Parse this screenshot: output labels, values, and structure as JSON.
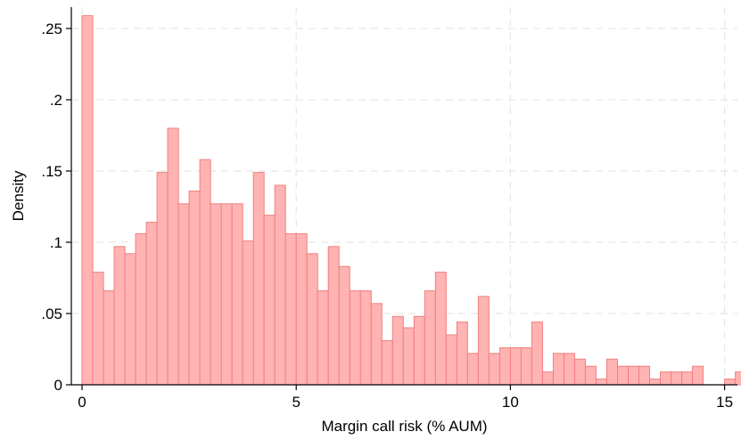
{
  "chart_data": {
    "type": "bar",
    "subtype": "histogram",
    "title": "",
    "xlabel": "Margin call risk (% AUM)",
    "ylabel": "Density",
    "xlim": [
      -0.25,
      15.3
    ],
    "ylim": [
      0,
      0.265
    ],
    "x_ticks": [
      0,
      5,
      10,
      15
    ],
    "x_tick_labels": [
      "0",
      "5",
      "10",
      "15"
    ],
    "y_ticks": [
      0,
      0.05,
      0.1,
      0.15,
      0.2,
      0.25
    ],
    "y_tick_labels": [
      "0",
      ".05",
      ".1",
      ".15",
      ".2",
      ".25"
    ],
    "grid": true,
    "bin_width": 0.25,
    "bin_start": 0.0,
    "values": [
      0.259,
      0.079,
      0.066,
      0.097,
      0.092,
      0.106,
      0.114,
      0.149,
      0.18,
      0.127,
      0.136,
      0.158,
      0.127,
      0.127,
      0.127,
      0.101,
      0.149,
      0.119,
      0.14,
      0.106,
      0.106,
      0.092,
      0.066,
      0.097,
      0.083,
      0.066,
      0.066,
      0.057,
      0.031,
      0.048,
      0.04,
      0.048,
      0.066,
      0.079,
      0.035,
      0.044,
      0.022,
      0.062,
      0.022,
      0.026,
      0.026,
      0.026,
      0.044,
      0.009,
      0.022,
      0.022,
      0.018,
      0.013,
      0.004,
      0.018,
      0.013,
      0.013,
      0.013,
      0.004,
      0.009,
      0.009,
      0.009,
      0.013,
      0,
      0,
      0.004,
      0.009,
      0.018
    ],
    "colors": {
      "bar_fill": "#ffb3b3",
      "bar_stroke": "#f08080",
      "grid": "#e6e6e6",
      "axis": "#000000"
    }
  }
}
